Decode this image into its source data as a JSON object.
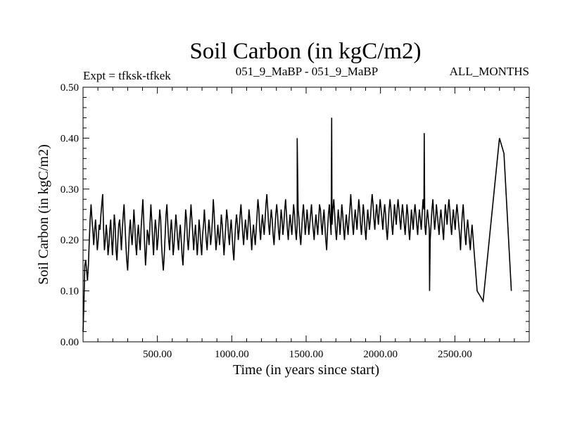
{
  "chart_data": {
    "type": "line",
    "title": "Soil Carbon (in kgC/m2)",
    "expt_label": "Expt = tfksk-tfkek",
    "subtitle_center": "051_9_MaBP - 051_9_MaBP",
    "subtitle_right": "ALL_MONTHS",
    "xlabel": "Time (in years since start)",
    "ylabel": "Soil Carbon (in kgC/m2)",
    "xlim": [
      0,
      3000
    ],
    "ylim": [
      0.0,
      0.5
    ],
    "xticks": [
      500,
      1000,
      1500,
      2000,
      2500
    ],
    "xtick_labels": [
      "500.00",
      "1000.00",
      "1500.00",
      "2000.00",
      "2500.00"
    ],
    "yticks": [
      0.0,
      0.1,
      0.2,
      0.3,
      0.4,
      0.5
    ],
    "ytick_labels": [
      "0.00",
      "0.10",
      "0.20",
      "0.30",
      "0.40",
      "0.50"
    ],
    "series": [
      {
        "name": "Soil Carbon",
        "color": "#000000",
        "x_start": 0,
        "x_step": 6,
        "values": [
          0.02,
          0.08,
          0.15,
          0.16,
          0.14,
          0.12,
          0.15,
          0.2,
          0.24,
          0.27,
          0.24,
          0.22,
          0.19,
          0.22,
          0.24,
          0.21,
          0.18,
          0.2,
          0.23,
          0.22,
          0.25,
          0.27,
          0.29,
          0.22,
          0.18,
          0.2,
          0.23,
          0.21,
          0.17,
          0.19,
          0.22,
          0.24,
          0.2,
          0.17,
          0.21,
          0.25,
          0.23,
          0.18,
          0.16,
          0.2,
          0.23,
          0.24,
          0.21,
          0.18,
          0.22,
          0.25,
          0.27,
          0.23,
          0.19,
          0.16,
          0.14,
          0.18,
          0.22,
          0.24,
          0.21,
          0.19,
          0.22,
          0.26,
          0.23,
          0.19,
          0.17,
          0.21,
          0.23,
          0.2,
          0.18,
          0.22,
          0.25,
          0.28,
          0.24,
          0.19,
          0.15,
          0.18,
          0.22,
          0.21,
          0.19,
          0.23,
          0.27,
          0.24,
          0.2,
          0.17,
          0.21,
          0.24,
          0.22,
          0.18,
          0.2,
          0.23,
          0.26,
          0.24,
          0.19,
          0.16,
          0.14,
          0.17,
          0.21,
          0.25,
          0.27,
          0.23,
          0.2,
          0.18,
          0.22,
          0.24,
          0.21,
          0.17,
          0.19,
          0.22,
          0.25,
          0.23,
          0.2,
          0.18,
          0.21,
          0.23,
          0.2,
          0.17,
          0.15,
          0.19,
          0.22,
          0.26,
          0.24,
          0.2,
          0.18,
          0.21,
          0.24,
          0.27,
          0.24,
          0.21,
          0.18,
          0.21,
          0.23,
          0.2,
          0.17,
          0.2,
          0.24,
          0.22,
          0.19,
          0.17,
          0.21,
          0.23,
          0.26,
          0.23,
          0.2,
          0.18,
          0.21,
          0.24,
          0.22,
          0.19,
          0.21,
          0.24,
          0.28,
          0.25,
          0.21,
          0.18,
          0.2,
          0.23,
          0.21,
          0.19,
          0.22,
          0.25,
          0.23,
          0.2,
          0.17,
          0.2,
          0.23,
          0.26,
          0.24,
          0.21,
          0.19,
          0.22,
          0.24,
          0.21,
          0.18,
          0.16,
          0.2,
          0.23,
          0.25,
          0.23,
          0.2,
          0.22,
          0.25,
          0.27,
          0.24,
          0.21,
          0.19,
          0.22,
          0.24,
          0.22,
          0.2,
          0.23,
          0.26,
          0.24,
          0.21,
          0.18,
          0.21,
          0.23,
          0.21,
          0.19,
          0.22,
          0.25,
          0.28,
          0.26,
          0.22,
          0.2,
          0.23,
          0.25,
          0.23,
          0.21,
          0.24,
          0.27,
          0.29,
          0.26,
          0.23,
          0.21,
          0.24,
          0.26,
          0.24,
          0.21,
          0.19,
          0.22,
          0.25,
          0.27,
          0.25,
          0.22,
          0.2,
          0.23,
          0.26,
          0.24,
          0.21,
          0.23,
          0.26,
          0.28,
          0.25,
          0.22,
          0.2,
          0.23,
          0.25,
          0.23,
          0.21,
          0.24,
          0.27,
          0.25,
          0.22,
          0.2,
          0.23,
          0.26,
          0.24,
          0.21,
          0.19,
          0.22,
          0.25,
          0.27,
          0.24,
          0.21,
          0.23,
          0.26,
          0.24,
          0.21,
          0.23,
          0.25,
          0.27,
          0.24,
          0.22,
          0.2,
          0.23,
          0.25,
          0.23,
          0.21,
          0.24,
          0.27,
          0.26,
          0.23,
          0.21,
          0.24,
          0.26,
          0.23,
          0.2,
          0.18,
          0.22,
          0.25,
          0.27,
          0.24,
          0.21,
          0.23,
          0.26,
          0.28,
          0.25,
          0.22,
          0.2,
          0.23,
          0.26,
          0.24,
          0.21,
          0.24,
          0.27,
          0.25,
          0.22,
          0.2,
          0.23,
          0.25,
          0.23,
          0.21,
          0.24,
          0.26,
          0.29,
          0.26,
          0.23,
          0.21,
          0.24,
          0.26,
          0.24,
          0.22,
          0.25,
          0.28,
          0.26,
          0.23,
          0.21,
          0.24,
          0.27,
          0.25,
          0.22,
          0.2,
          0.23,
          0.26,
          0.24,
          0.22,
          0.24,
          0.27,
          0.29,
          0.27,
          0.24,
          0.22,
          0.25,
          0.27,
          0.25,
          0.23,
          0.26,
          0.28,
          0.26,
          0.24,
          0.22,
          0.25,
          0.27,
          0.25,
          0.22,
          0.2,
          0.23,
          0.26,
          0.28,
          0.26,
          0.23,
          0.21,
          0.24,
          0.27,
          0.25,
          0.23,
          0.26,
          0.28,
          0.26,
          0.24,
          0.22,
          0.25,
          0.27,
          0.25,
          0.23,
          0.21,
          0.24,
          0.27,
          0.25,
          0.22,
          0.2,
          0.23,
          0.26,
          0.24,
          0.22,
          0.25,
          0.27,
          0.25,
          0.23,
          0.21,
          0.24,
          0.26,
          0.24,
          0.22,
          0.25,
          0.28,
          0.26,
          0.23,
          0.21,
          0.24,
          0.26,
          0.24,
          0.22,
          0.2,
          0.23,
          0.26,
          0.28,
          0.25,
          0.22,
          0.24,
          0.27,
          0.25,
          0.23,
          0.21,
          0.24,
          0.26,
          0.24,
          0.22,
          0.2,
          0.24,
          0.27,
          0.25,
          0.23,
          0.26,
          0.28,
          0.26,
          0.23,
          0.21,
          0.24,
          0.26,
          0.24,
          0.22,
          0.25,
          0.27,
          0.25,
          0.23,
          0.21,
          0.18,
          0.22,
          0.25,
          0.27,
          0.24,
          0.21,
          0.19,
          0.22,
          0.24,
          0.22,
          0.2,
          0.18,
          0.21,
          0.23
        ],
        "spikes": [
          {
            "x": 1440,
            "y": 0.4
          },
          {
            "x": 1672,
            "y": 0.44
          },
          {
            "x": 2294,
            "y": 0.41
          },
          {
            "x": 2800,
            "y": 0.4
          },
          {
            "x": 2830,
            "y": 0.37
          },
          {
            "x": 2330,
            "y": 0.1
          },
          {
            "x": 2690,
            "y": 0.08
          },
          {
            "x": 2650,
            "y": 0.1
          },
          {
            "x": 2880,
            "y": 0.1
          }
        ]
      }
    ]
  }
}
